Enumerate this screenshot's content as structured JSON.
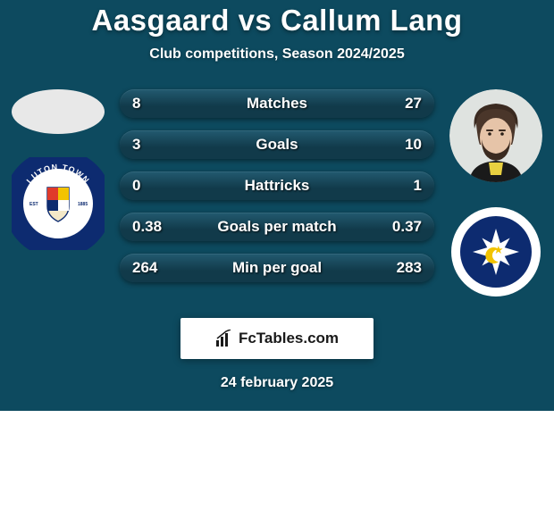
{
  "card": {
    "background_color": "#0d4a5f",
    "text_color": "#ffffff"
  },
  "title": {
    "player_a": "Aasgaard",
    "vs": "vs",
    "player_b": "Callum Lang",
    "fontsize": 33,
    "color": "#ffffff"
  },
  "subtitle": {
    "text": "Club competitions, Season 2024/2025",
    "fontsize": 16,
    "color": "#ffffff"
  },
  "left_side": {
    "player_avatar_bg": "#e8e8e8",
    "club_badge": {
      "bg": "#ffffff",
      "ring": "#0d2b70",
      "ring_text": "LUTON TOWN FOOTBALL CLUB",
      "ring_text_color": "#ffffff",
      "est_text": "EST 1885",
      "shield_colors": [
        "#e03a2a",
        "#f2c300",
        "#0d2b70"
      ]
    }
  },
  "right_side": {
    "player_avatar_bg": "#dfe3e0",
    "club_badge": {
      "bg": "#ffffff",
      "inner_bg": "#0d2b70",
      "symbol_color": "#ffffff",
      "accent_color": "#f2c300"
    }
  },
  "stats": {
    "bar_bg": "#113a4a",
    "bar_highlight": "#225a70",
    "label_color": "#ffffff",
    "value_color": "#ffffff",
    "label_fontsize": 17,
    "value_fontsize": 17,
    "rows": [
      {
        "label": "Matches",
        "a": "8",
        "b": "27"
      },
      {
        "label": "Goals",
        "a": "3",
        "b": "10"
      },
      {
        "label": "Hattricks",
        "a": "0",
        "b": "1"
      },
      {
        "label": "Goals per match",
        "a": "0.38",
        "b": "0.37"
      },
      {
        "label": "Min per goal",
        "a": "264",
        "b": "283"
      }
    ]
  },
  "brand": {
    "text": "FcTables.com",
    "bg": "#ffffff",
    "text_color": "#1a1a1a",
    "fontsize": 17
  },
  "date": {
    "text": "24 february 2025",
    "fontsize": 16,
    "color": "#ffffff"
  }
}
